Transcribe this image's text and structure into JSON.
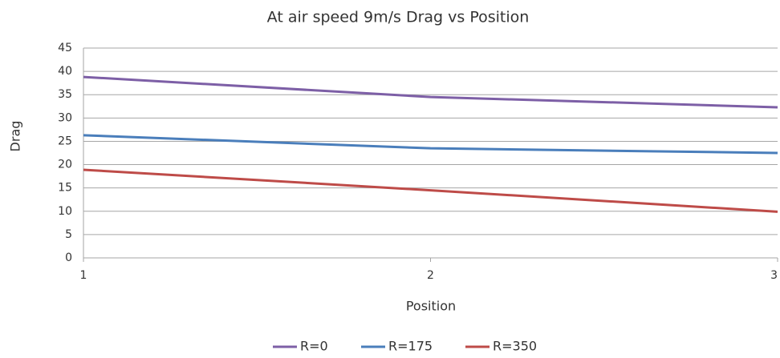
{
  "chart_data": {
    "type": "line",
    "title": "At air speed 9m/s  Drag vs Position",
    "x_label": "Position",
    "y_label": "Drag",
    "x": [
      1,
      2,
      3
    ],
    "series": [
      {
        "name": "R=0",
        "color": "#7d5fa6",
        "values": [
          38.8,
          34.5,
          32.3
        ]
      },
      {
        "name": "R=175",
        "color": "#4a7ebb",
        "values": [
          26.3,
          23.5,
          22.5
        ]
      },
      {
        "name": "R=350",
        "color": "#be4b48",
        "values": [
          18.9,
          14.5,
          9.9
        ]
      }
    ],
    "xlim": [
      1,
      3
    ],
    "xticks": [
      1,
      2,
      3
    ],
    "ylim": [
      0,
      45
    ],
    "yticks": [
      0,
      5,
      10,
      15,
      20,
      25,
      30,
      35,
      40,
      45
    ],
    "grid": true,
    "legend": "bottom"
  }
}
